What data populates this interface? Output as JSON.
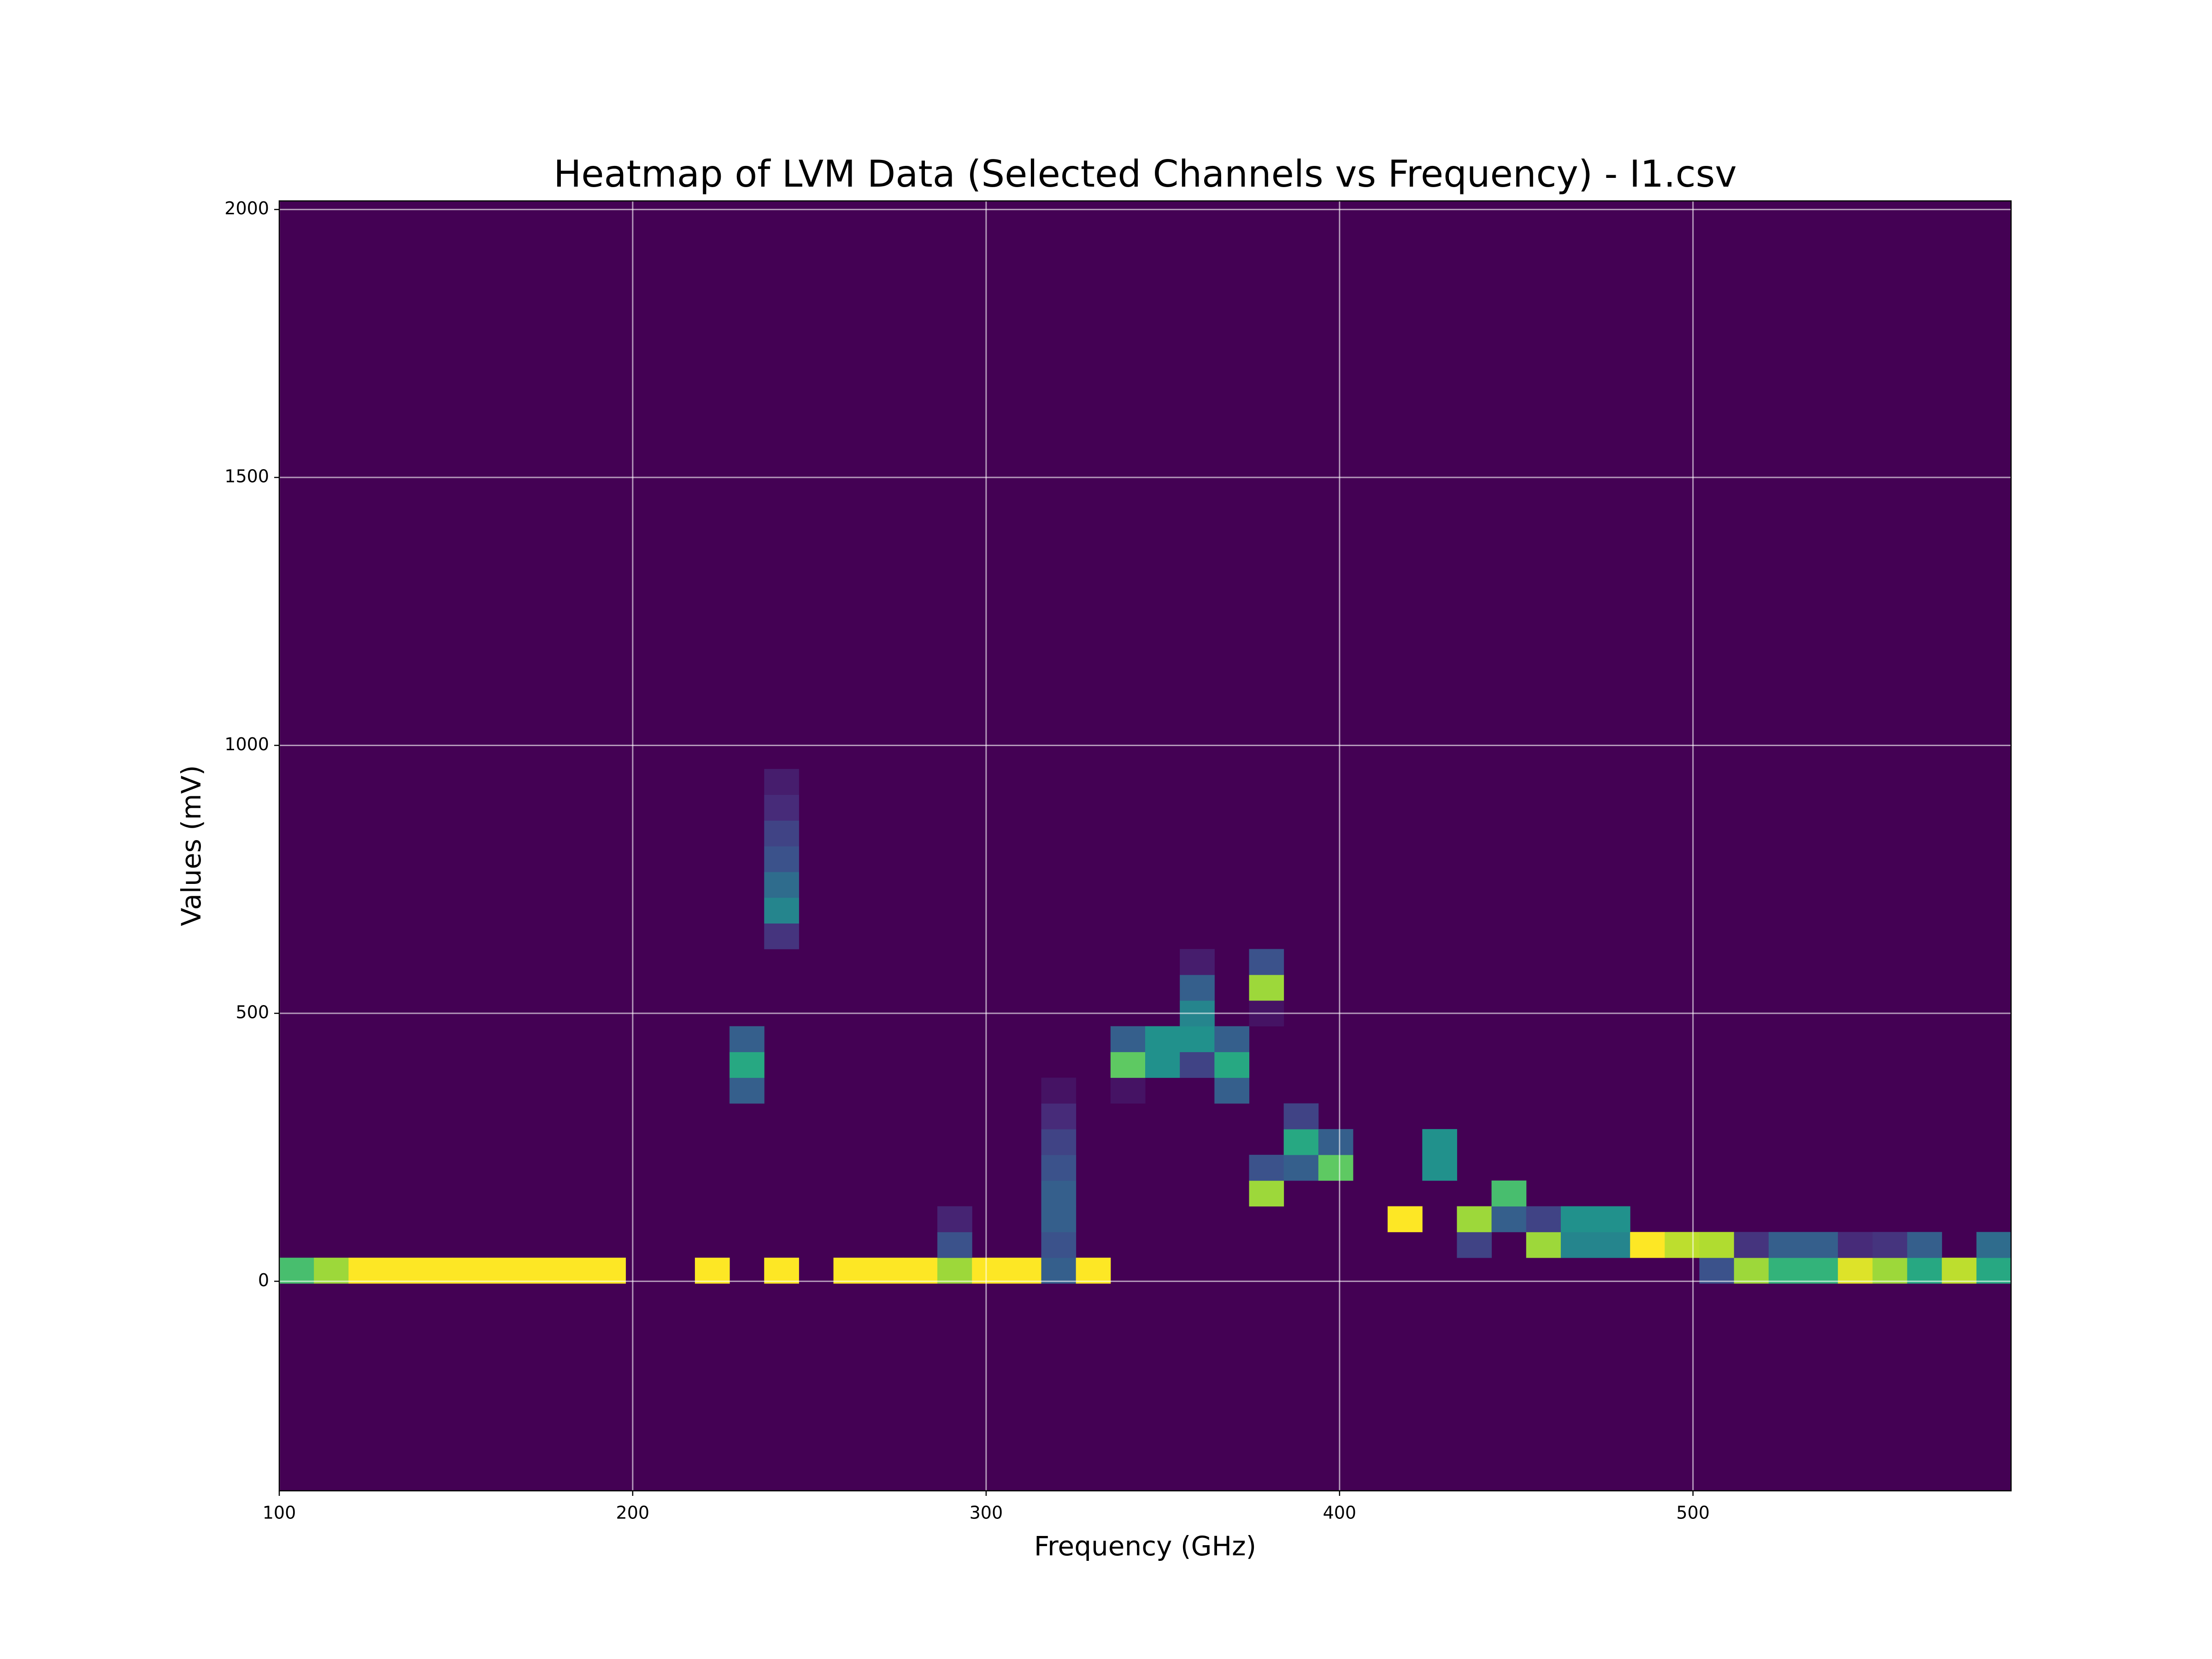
{
  "chart_data": {
    "type": "heatmap",
    "title": "Heatmap of LVM Data (Selected Channels vs Frequency) - I1.csv",
    "x_label": "Frequency (GHz)",
    "y_label": "Values (mV)",
    "xlim": [
      100,
      590
    ],
    "ylim": [
      -391,
      2016
    ],
    "xticks": [
      100,
      200,
      300,
      400,
      500
    ],
    "yticks": [
      0,
      500,
      1000,
      1500,
      2000
    ],
    "grid": true,
    "colormap": "viridis",
    "cells": [
      {
        "y": 20,
        "x": [
          104.9,
          114.7,
          124.5,
          134.3,
          144.1,
          153.9,
          163.7,
          173.5,
          183.3,
          193.1,
          222.5,
          242.1,
          261.7,
          271.5,
          281.3,
          291.1,
          300.9,
          310.7,
          320.5,
          330.3,
          506.7,
          516.5,
          526.3,
          536.1,
          545.9,
          555.7,
          565.5,
          575.3,
          585.1
        ],
        "values": [
          0.7,
          0.85,
          1,
          1,
          1,
          1,
          1,
          1,
          1,
          1,
          1,
          1,
          1,
          1,
          1,
          0.85,
          1,
          1,
          0.3,
          1,
          0.25,
          0.85,
          0.65,
          0.65,
          0.95,
          0.85,
          0.6,
          0.9,
          0.6
        ]
      },
      {
        "y": 68,
        "x": [
          291.1,
          320.5,
          438.1,
          457.7,
          467.5,
          477.3,
          487.1,
          496.9,
          506.7,
          516.5,
          526.3,
          536.1,
          545.9,
          555.7,
          565.5,
          585.1
        ],
        "values": [
          0.25,
          0.25,
          0.2,
          0.85,
          0.45,
          0.45,
          1,
          0.9,
          0.88,
          0.15,
          0.3,
          0.3,
          0.12,
          0.15,
          0.3,
          0.35
        ]
      },
      {
        "y": 116,
        "x": [
          291.1,
          320.5,
          418.5,
          438.1,
          447.9,
          457.7,
          467.5,
          477.3
        ],
        "values": [
          0.1,
          0.3,
          1,
          0.85,
          0.3,
          0.2,
          0.5,
          0.5
        ]
      },
      {
        "y": 164,
        "x": [
          320.5,
          379.3,
          447.9
        ],
        "values": [
          0.3,
          0.85,
          0.7
        ]
      },
      {
        "y": 212,
        "x": [
          320.5,
          379.3,
          389.1,
          398.9,
          428.3
        ],
        "values": [
          0.25,
          0.25,
          0.3,
          0.75,
          0.5
        ]
      },
      {
        "y": 260,
        "x": [
          320.5,
          389.1,
          398.9,
          428.3
        ],
        "values": [
          0.2,
          0.6,
          0.3,
          0.5
        ]
      },
      {
        "y": 308,
        "x": [
          320.5,
          389.1
        ],
        "values": [
          0.12,
          0.2
        ]
      },
      {
        "y": 356,
        "x": [
          232.3,
          320.5,
          340.1,
          369.5
        ],
        "values": [
          0.3,
          0.05,
          0.05,
          0.3
        ]
      },
      {
        "y": 404,
        "x": [
          232.3,
          340.1,
          349.9,
          359.7,
          369.5
        ],
        "values": [
          0.6,
          0.75,
          0.5,
          0.2,
          0.6
        ]
      },
      {
        "y": 452,
        "x": [
          232.3,
          340.1,
          349.9,
          359.7,
          369.5
        ],
        "values": [
          0.3,
          0.3,
          0.5,
          0.5,
          0.3
        ]
      },
      {
        "y": 500,
        "x": [
          359.7,
          379.3
        ],
        "values": [
          0.45,
          0.05
        ]
      },
      {
        "y": 548,
        "x": [
          359.7,
          379.3
        ],
        "values": [
          0.3,
          0.85
        ]
      },
      {
        "y": 596,
        "x": [
          359.7,
          379.3
        ],
        "values": [
          0.08,
          0.25
        ]
      },
      {
        "y": 644,
        "x": [
          242.1
        ],
        "values": [
          0.15
        ]
      },
      {
        "y": 692,
        "x": [
          242.1
        ],
        "values": [
          0.45
        ]
      },
      {
        "y": 740,
        "x": [
          242.1
        ],
        "values": [
          0.35
        ]
      },
      {
        "y": 788,
        "x": [
          242.1
        ],
        "values": [
          0.25
        ]
      },
      {
        "y": 836,
        "x": [
          242.1
        ],
        "values": [
          0.2
        ]
      },
      {
        "y": 884,
        "x": [
          242.1
        ],
        "values": [
          0.12
        ]
      },
      {
        "y": 932,
        "x": [
          242.1
        ],
        "values": [
          0.08
        ]
      }
    ]
  }
}
